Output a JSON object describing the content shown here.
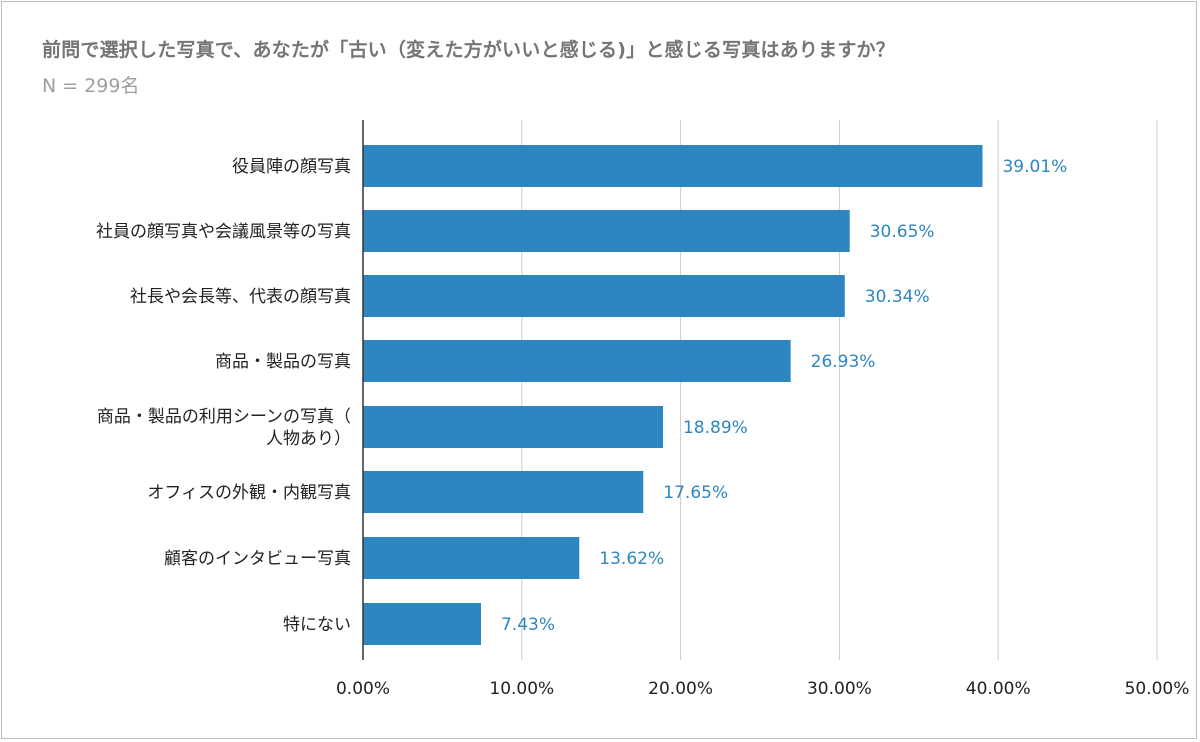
{
  "title": "前問で選択した写真で、あなたが「古い（変えた方がいいと感じる)」と感じる写真はありますか？",
  "subtitle": "N = 299名",
  "colors": {
    "bar": "#2e86c1",
    "value_label": "#2e86c1",
    "grid": "#cccccc",
    "axis": "#333333",
    "text": "#222222",
    "title": "#757575",
    "subtitle": "#9e9e9e"
  },
  "chart_data": {
    "type": "bar",
    "orientation": "horizontal",
    "categories": [
      "役員陣の顔写真",
      "社員の顔写真や会議風景等の写真",
      "社長や会長等、代表の顔写真",
      "商品・製品の写真",
      "商品・製品の利用シーンの写真（人物あり）",
      "オフィスの外観・内観写真",
      "顧客のインタビュー写真",
      "特にない"
    ],
    "category_label_lines": [
      [
        "役員陣の顔写真"
      ],
      [
        "社員の顔写真や会議風景等の写真"
      ],
      [
        "社長や会長等、代表の顔写真"
      ],
      [
        "商品・製品の写真"
      ],
      [
        "商品・製品の利用シーンの写真（",
        "人物あり）"
      ],
      [
        "オフィスの外観・内観写真"
      ],
      [
        "顧客のインタビュー写真"
      ],
      [
        "特にない"
      ]
    ],
    "values": [
      39.01,
      30.65,
      30.34,
      26.93,
      18.89,
      17.65,
      13.62,
      7.43
    ],
    "value_labels": [
      "39.01%",
      "30.65%",
      "30.34%",
      "26.93%",
      "18.89%",
      "17.65%",
      "13.62%",
      "7.43%"
    ],
    "xlim": [
      0,
      50
    ],
    "x_ticks": [
      0,
      10,
      20,
      30,
      40,
      50
    ],
    "x_tick_labels": [
      "0.00%",
      "10.00%",
      "20.00%",
      "30.00%",
      "40.00%",
      "50.00%"
    ],
    "grid": true,
    "legend": "none"
  }
}
